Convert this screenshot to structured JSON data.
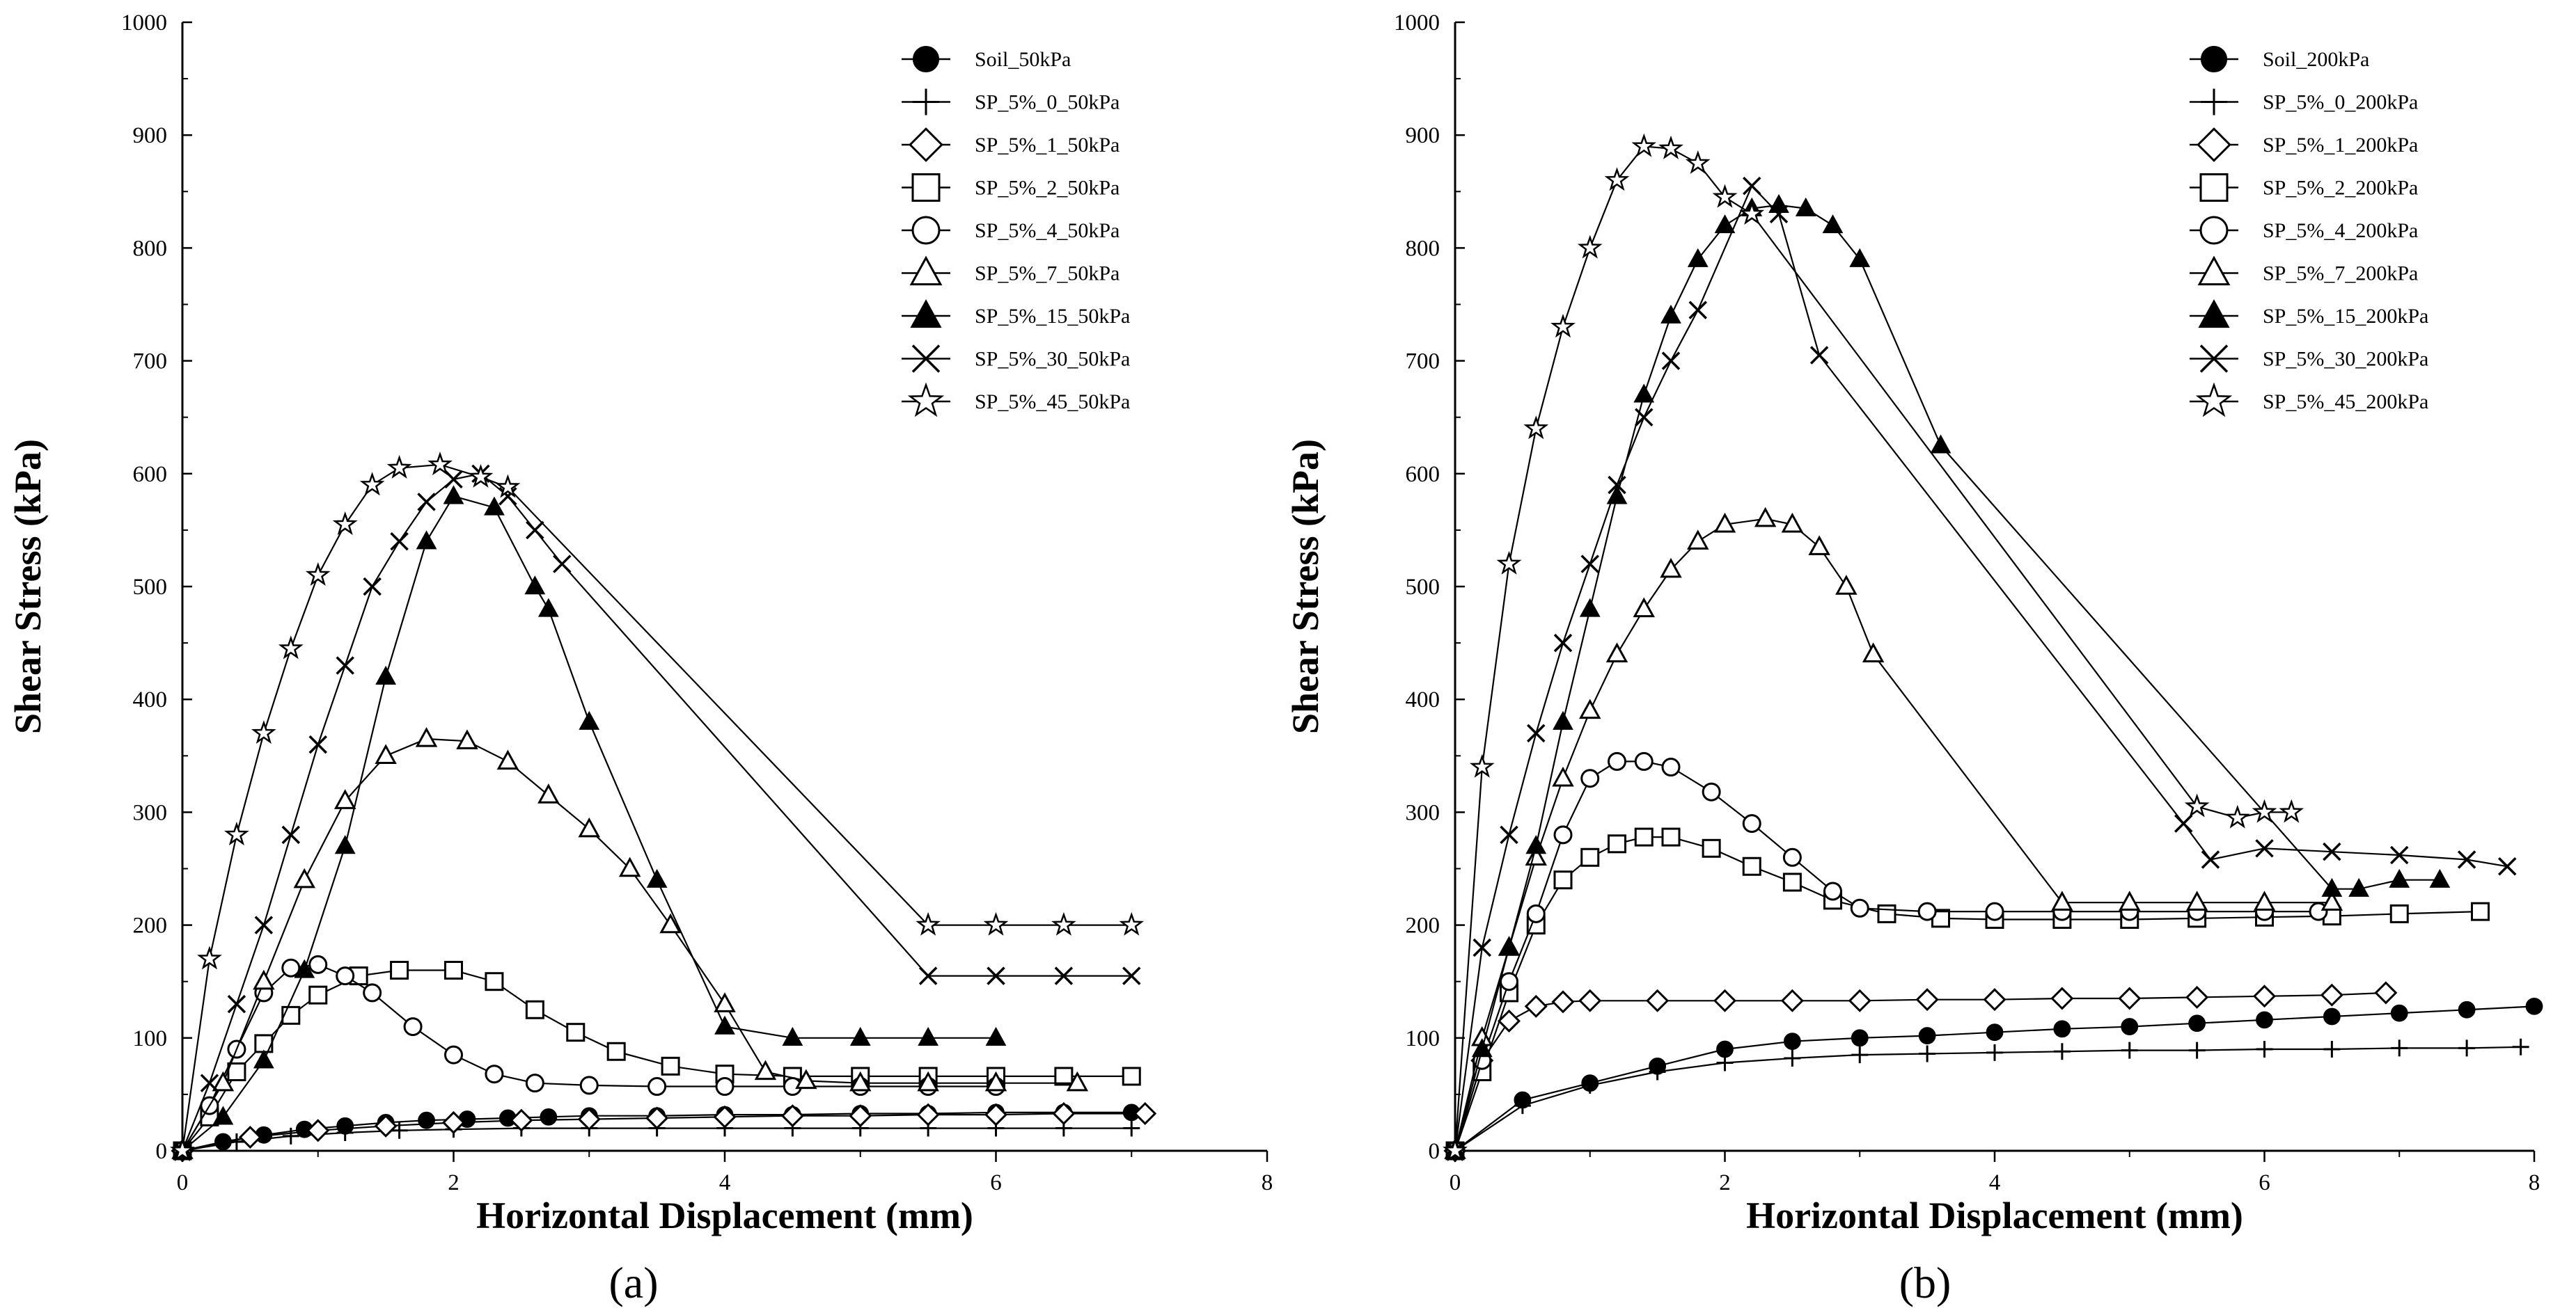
{
  "chart_data": [
    {
      "type": "line",
      "panel_label": "(a)",
      "xlabel": "Horizontal Displacement (mm)",
      "ylabel": "Shear Stress (kPa)",
      "xlim": [
        0,
        8
      ],
      "ylim": [
        0,
        1000
      ],
      "x_ticks": [
        "0",
        "2",
        "4",
        "6",
        "8"
      ],
      "y_ticks": [
        "0",
        "100",
        "200",
        "300",
        "400",
        "500",
        "600",
        "700",
        "800",
        "900",
        "1000"
      ],
      "grid": false,
      "legend_position": "top-right",
      "series": [
        {
          "name": "Soil_50kPa",
          "marker": "filled-circle",
          "x": [
            0,
            0.3,
            0.6,
            0.9,
            1.2,
            1.5,
            1.8,
            2.1,
            2.4,
            2.7,
            3.0,
            3.5,
            4.0,
            4.5,
            5.0,
            5.5,
            6.0,
            6.5,
            7.0
          ],
          "y": [
            0,
            8,
            14,
            19,
            22,
            25,
            27,
            28,
            29,
            30,
            31,
            31,
            32,
            32,
            33,
            33,
            34,
            34,
            34
          ]
        },
        {
          "name": "SP_5%_0_50kPa",
          "marker": "plus",
          "x": [
            0,
            0.4,
            0.8,
            1.2,
            1.6,
            2.0,
            2.5,
            3.0,
            3.5,
            4.0,
            4.5,
            5.0,
            5.5,
            6.0,
            6.5,
            7.0
          ],
          "y": [
            0,
            8,
            13,
            16,
            18,
            19,
            20,
            20,
            20,
            20,
            20,
            20,
            20,
            20,
            20,
            20
          ]
        },
        {
          "name": "SP_5%_1_50kPa",
          "marker": "open-diamond",
          "x": [
            0,
            0.5,
            1.0,
            1.5,
            2.0,
            2.5,
            3.0,
            3.5,
            4.0,
            4.5,
            5.0,
            5.5,
            6.0,
            6.5,
            7.1
          ],
          "y": [
            0,
            12,
            18,
            22,
            25,
            27,
            28,
            29,
            30,
            31,
            31,
            32,
            32,
            33,
            33
          ]
        },
        {
          "name": "SP_5%_2_50kPa",
          "marker": "open-square",
          "x": [
            0,
            0.2,
            0.4,
            0.6,
            0.8,
            1.0,
            1.3,
            1.6,
            2.0,
            2.3,
            2.6,
            2.9,
            3.2,
            3.6,
            4.0,
            4.5,
            5.0,
            5.5,
            6.0,
            6.5,
            7.0
          ],
          "y": [
            0,
            30,
            70,
            95,
            120,
            138,
            155,
            160,
            160,
            150,
            125,
            105,
            88,
            75,
            68,
            66,
            66,
            66,
            66,
            66,
            66
          ]
        },
        {
          "name": "SP_5%_4_50kPa",
          "marker": "open-circle",
          "x": [
            0,
            0.2,
            0.4,
            0.6,
            0.8,
            1.0,
            1.2,
            1.4,
            1.7,
            2.0,
            2.3,
            2.6,
            3.0,
            3.5,
            4.0,
            4.5,
            5.0,
            5.5,
            6.0
          ],
          "y": [
            0,
            40,
            90,
            140,
            162,
            165,
            155,
            140,
            110,
            85,
            68,
            60,
            58,
            57,
            57,
            57,
            57,
            57,
            57
          ]
        },
        {
          "name": "SP_5%_7_50kPa",
          "marker": "open-triangle",
          "x": [
            0,
            0.3,
            0.6,
            0.9,
            1.2,
            1.5,
            1.8,
            2.1,
            2.4,
            2.7,
            3.0,
            3.3,
            3.6,
            4.0,
            4.3,
            4.6,
            5.0,
            5.5,
            6.0,
            6.6
          ],
          "y": [
            0,
            60,
            150,
            240,
            310,
            350,
            365,
            363,
            345,
            315,
            285,
            250,
            200,
            130,
            70,
            62,
            60,
            60,
            60,
            60
          ]
        },
        {
          "name": "SP_5%_15_50kPa",
          "marker": "filled-triangle",
          "x": [
            0,
            0.3,
            0.6,
            0.9,
            1.2,
            1.5,
            1.8,
            2.0,
            2.3,
            2.6,
            2.7,
            3.0,
            3.5,
            4.0,
            4.5,
            5.0,
            5.5,
            6.0
          ],
          "y": [
            0,
            30,
            80,
            160,
            270,
            420,
            540,
            580,
            570,
            500,
            480,
            380,
            240,
            110,
            100,
            100,
            100,
            100
          ]
        },
        {
          "name": "SP_5%_30_50kPa",
          "marker": "x",
          "x": [
            0,
            0.2,
            0.4,
            0.6,
            0.8,
            1.0,
            1.2,
            1.4,
            1.6,
            1.8,
            2.0,
            2.2,
            2.4,
            2.6,
            2.8,
            5.5,
            6.0,
            6.5,
            7.0
          ],
          "y": [
            0,
            60,
            130,
            200,
            280,
            360,
            430,
            500,
            540,
            575,
            595,
            600,
            580,
            550,
            520,
            155,
            155,
            155,
            155
          ]
        },
        {
          "name": "SP_5%_45_50kPa",
          "marker": "star",
          "x": [
            0,
            0.2,
            0.4,
            0.6,
            0.8,
            1.0,
            1.2,
            1.4,
            1.6,
            1.9,
            2.2,
            2.4,
            5.5,
            6.0,
            6.5,
            7.0
          ],
          "y": [
            0,
            170,
            280,
            370,
            445,
            510,
            555,
            590,
            605,
            608,
            597,
            588,
            200,
            200,
            200,
            200
          ]
        }
      ]
    },
    {
      "type": "line",
      "panel_label": "(b)",
      "xlabel": "Horizontal Displacement (mm)",
      "ylabel": "Shear Stress (kPa)",
      "xlim": [
        0,
        8
      ],
      "ylim": [
        0,
        1000
      ],
      "x_ticks": [
        "0",
        "2",
        "4",
        "6",
        "8"
      ],
      "y_ticks": [
        "0",
        "100",
        "200",
        "300",
        "400",
        "500",
        "600",
        "700",
        "800",
        "900",
        "1000"
      ],
      "grid": false,
      "legend_position": "top-right",
      "series": [
        {
          "name": "Soil_200kPa",
          "marker": "filled-circle",
          "x": [
            0,
            0.5,
            1.0,
            1.5,
            2.0,
            2.5,
            3.0,
            3.5,
            4.0,
            4.5,
            5.0,
            5.5,
            6.0,
            6.5,
            7.0,
            7.5,
            8.0
          ],
          "y": [
            0,
            45,
            60,
            75,
            90,
            97,
            100,
            102,
            105,
            108,
            110,
            113,
            116,
            119,
            122,
            125,
            128
          ]
        },
        {
          "name": "SP_5%_0_200kPa",
          "marker": "plus",
          "x": [
            0,
            0.5,
            1.0,
            1.5,
            2.0,
            2.5,
            3.0,
            3.5,
            4.0,
            4.5,
            5.0,
            5.5,
            6.0,
            6.5,
            7.0,
            7.5,
            7.9
          ],
          "y": [
            0,
            40,
            58,
            70,
            78,
            82,
            85,
            86,
            87,
            88,
            89,
            89,
            90,
            90,
            91,
            91,
            92
          ]
        },
        {
          "name": "SP_5%_1_200kPa",
          "marker": "open-diamond",
          "x": [
            0,
            0.2,
            0.4,
            0.6,
            0.8,
            1.0,
            1.5,
            2.0,
            2.5,
            3.0,
            3.5,
            4.0,
            4.5,
            5.0,
            5.5,
            6.0,
            6.5,
            6.9
          ],
          "y": [
            0,
            80,
            115,
            128,
            132,
            133,
            133,
            133,
            133,
            133,
            134,
            134,
            135,
            135,
            136,
            137,
            138,
            140
          ]
        },
        {
          "name": "SP_5%_2_200kPa",
          "marker": "open-square",
          "x": [
            0,
            0.2,
            0.4,
            0.6,
            0.8,
            1.0,
            1.2,
            1.4,
            1.6,
            1.9,
            2.2,
            2.5,
            2.8,
            3.2,
            3.6,
            4.0,
            4.5,
            5.0,
            5.5,
            6.0,
            6.5,
            7.0,
            7.6
          ],
          "y": [
            0,
            70,
            140,
            200,
            240,
            260,
            272,
            278,
            278,
            268,
            252,
            238,
            222,
            210,
            206,
            205,
            205,
            205,
            206,
            207,
            208,
            210,
            212
          ]
        },
        {
          "name": "SP_5%_4_200kPa",
          "marker": "open-circle",
          "x": [
            0,
            0.2,
            0.4,
            0.6,
            0.8,
            1.0,
            1.2,
            1.4,
            1.6,
            1.9,
            2.2,
            2.5,
            2.8,
            3.0,
            3.5,
            4.0,
            4.5,
            5.0,
            5.5,
            6.0,
            6.4
          ],
          "y": [
            0,
            80,
            150,
            210,
            280,
            330,
            345,
            345,
            340,
            318,
            290,
            260,
            230,
            215,
            212,
            212,
            212,
            212,
            212,
            212,
            212
          ]
        },
        {
          "name": "SP_5%_7_200kPa",
          "marker": "open-triangle",
          "x": [
            0,
            0.2,
            0.4,
            0.6,
            0.8,
            1.0,
            1.2,
            1.4,
            1.6,
            1.8,
            2.0,
            2.3,
            2.5,
            2.7,
            2.9,
            3.1,
            4.5,
            5.0,
            5.5,
            6.0,
            6.5
          ],
          "y": [
            0,
            100,
            180,
            260,
            330,
            390,
            440,
            480,
            515,
            540,
            555,
            560,
            555,
            535,
            500,
            440,
            220,
            220,
            220,
            220,
            220
          ]
        },
        {
          "name": "SP_5%_15_200kPa",
          "marker": "filled-triangle",
          "x": [
            0,
            0.2,
            0.4,
            0.6,
            0.8,
            1.0,
            1.2,
            1.4,
            1.6,
            1.8,
            2.0,
            2.2,
            2.4,
            2.6,
            2.8,
            3.0,
            3.6,
            6.5,
            6.7,
            7.0,
            7.3
          ],
          "y": [
            0,
            90,
            180,
            270,
            380,
            480,
            580,
            670,
            740,
            790,
            820,
            835,
            838,
            835,
            820,
            790,
            625,
            232,
            232,
            240,
            240
          ]
        },
        {
          "name": "SP_5%_30_200kPa",
          "marker": "x",
          "x": [
            0,
            0.2,
            0.4,
            0.6,
            0.8,
            1.0,
            1.2,
            1.4,
            1.6,
            1.8,
            2.2,
            2.4,
            2.7,
            5.4,
            5.6,
            6.0,
            6.5,
            7.0,
            7.5,
            7.8
          ],
          "y": [
            0,
            180,
            280,
            370,
            450,
            520,
            590,
            650,
            700,
            745,
            855,
            830,
            705,
            290,
            258,
            268,
            265,
            262,
            258,
            252
          ]
        },
        {
          "name": "SP_5%_45_200kPa",
          "marker": "star",
          "x": [
            0,
            0.2,
            0.4,
            0.6,
            0.8,
            1.0,
            1.2,
            1.4,
            1.6,
            1.8,
            2.0,
            2.2,
            5.5,
            5.8,
            6.0,
            6.2
          ],
          "y": [
            0,
            340,
            520,
            640,
            730,
            800,
            860,
            890,
            888,
            875,
            845,
            830,
            305,
            295,
            300,
            300
          ]
        }
      ]
    }
  ]
}
